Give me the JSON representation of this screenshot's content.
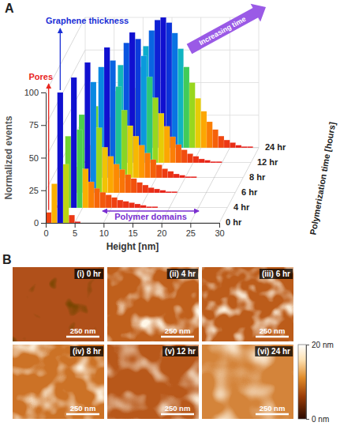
{
  "chart_data": [
    {
      "panel": "A",
      "type": "histogram_3d",
      "xlabel": "Height [nm]",
      "ylabel": "Normalized events",
      "zlabel": "Polymerization time [hours]",
      "bins": [
        0,
        1,
        2,
        3,
        4,
        5,
        6,
        7,
        8,
        9,
        10,
        11,
        12,
        13,
        14,
        15,
        16,
        17,
        18,
        19,
        20,
        21,
        22,
        23,
        24,
        25,
        26,
        27,
        28,
        29,
        30
      ],
      "series": [
        {
          "name": "0 hr",
          "values": [
            8,
            30,
            100,
            45,
            6,
            1,
            0,
            0,
            0,
            0,
            0,
            0,
            0,
            0,
            0,
            0,
            0,
            0,
            0,
            0,
            0,
            0,
            0,
            0,
            0,
            0,
            0,
            0,
            0,
            0
          ]
        },
        {
          "name": "4 hr",
          "values": [
            2,
            12,
            55,
            100,
            60,
            30,
            20,
            15,
            12,
            10,
            8,
            6,
            5,
            4,
            3,
            2,
            1,
            1,
            0,
            0,
            0,
            0,
            0,
            0,
            0,
            0,
            0,
            0,
            0,
            0
          ]
        },
        {
          "name": "6 hr",
          "values": [
            1,
            4,
            20,
            60,
            100,
            85,
            50,
            35,
            28,
            22,
            18,
            14,
            11,
            8,
            6,
            4,
            3,
            2,
            1,
            1,
            0,
            0,
            0,
            0,
            0,
            0,
            0,
            0,
            0,
            0
          ]
        },
        {
          "name": "8 hr",
          "values": [
            0,
            2,
            8,
            25,
            55,
            85,
            100,
            90,
            70,
            52,
            40,
            32,
            25,
            19,
            14,
            10,
            7,
            5,
            3,
            2,
            1,
            1,
            0,
            0,
            0,
            0,
            0,
            0,
            0,
            0
          ]
        },
        {
          "name": "12 hr",
          "values": [
            0,
            1,
            3,
            8,
            18,
            35,
            55,
            75,
            92,
            100,
            95,
            82,
            66,
            50,
            38,
            28,
            20,
            14,
            10,
            7,
            5,
            3,
            2,
            1,
            1,
            0,
            0,
            0,
            0,
            0
          ]
        },
        {
          "name": "24 hr",
          "values": [
            0,
            0,
            1,
            3,
            6,
            12,
            20,
            32,
            46,
            62,
            78,
            90,
            98,
            100,
            96,
            88,
            76,
            62,
            50,
            38,
            28,
            20,
            14,
            9,
            6,
            4,
            2,
            1,
            1,
            0
          ]
        }
      ],
      "xlim": [
        0,
        30
      ],
      "xticks": [
        0,
        5,
        10,
        15,
        20,
        25,
        30
      ],
      "ylim": [
        0,
        100
      ],
      "yticks": [
        0,
        25,
        50,
        75,
        100
      ],
      "grid": true,
      "annotations": [
        {
          "text": "Pores",
          "color": "#e8261f"
        },
        {
          "text": "Graphene thickness",
          "color": "#1a2fd6"
        },
        {
          "text": "Polymer domains",
          "color": "#7a2fd0"
        },
        {
          "text": "Increasing time",
          "color": "#9a5ae6"
        }
      ]
    },
    {
      "panel": "B",
      "type": "image_grid",
      "images": [
        {
          "label": "(i) 0 hr",
          "color": "#b0501a"
        },
        {
          "label": "(ii) 4 hr",
          "color": "#c0601c"
        },
        {
          "label": "(iii) 6 hr",
          "color": "#bc5c1a"
        },
        {
          "label": "(iv) 8 hr",
          "color": "#cc7226"
        },
        {
          "label": "(v) 12 hr",
          "color": "#b8581a"
        },
        {
          "label": "(vi) 24 hr",
          "color": "#d4843a"
        }
      ],
      "scale_bar": "250 nm",
      "colorbar": {
        "range": [
          0,
          20
        ],
        "ticks": [
          {
            "value": 0,
            "label": "0 nm"
          },
          {
            "value": 20,
            "label": "20 nm"
          }
        ]
      }
    }
  ]
}
